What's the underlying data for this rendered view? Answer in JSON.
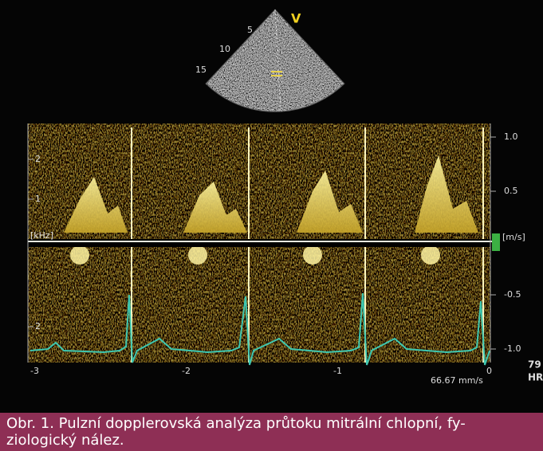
{
  "figure": {
    "sector_labels": {
      "depth": [
        "5",
        "10",
        "15"
      ],
      "marker": "V"
    },
    "left_scale": {
      "ticks": [
        "2",
        "1",
        "2"
      ],
      "unit": "[kHz]"
    },
    "right_scale": {
      "ticks": [
        "1.0",
        "0.5",
        "-0.5",
        "-1.0"
      ],
      "unit": "[m/s]"
    },
    "time_axis": [
      "-3",
      "-2",
      "-1",
      "0"
    ],
    "sweep_speed": "66.67 mm/s",
    "heart_rate": {
      "value": 79,
      "label": "HR"
    }
  },
  "caption": {
    "lines": [
      "Obr. 1. Pulzní dopplerovská analýza průtoku mitrální chlopní, fy-",
      "ziologický nález."
    ]
  }
}
